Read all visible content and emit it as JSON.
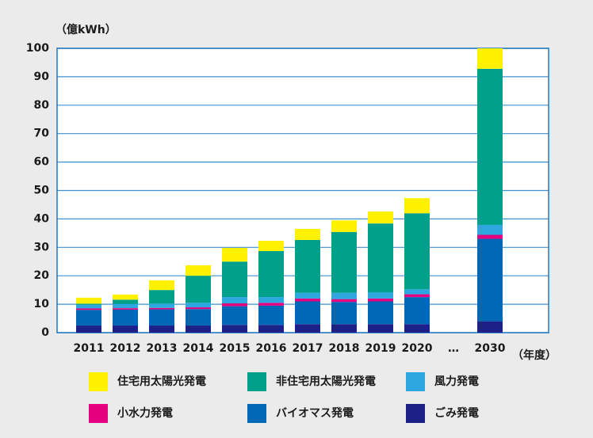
{
  "chart_data": {
    "type": "stacked_bar",
    "y_label": "（億kWh）",
    "x_label": "（年度）",
    "categories": [
      "2011",
      "2012",
      "2013",
      "2014",
      "2015",
      "2016",
      "2017",
      "2018",
      "2019",
      "2020",
      "…",
      "2030"
    ],
    "ylim": [
      0,
      100
    ],
    "yticks": [
      0,
      10,
      20,
      30,
      40,
      50,
      60,
      70,
      80,
      90,
      100
    ],
    "grid": true,
    "series": [
      {
        "name": "ごみ発電",
        "color": "#1d2087",
        "values": [
          2.5,
          2.5,
          2.5,
          2.5,
          2.7,
          2.7,
          3.0,
          3.0,
          3.0,
          3.0,
          null,
          4.0
        ]
      },
      {
        "name": "バイオマス発電",
        "color": "#0068b7",
        "values": [
          5.5,
          5.6,
          5.7,
          5.8,
          6.6,
          6.8,
          8.0,
          7.8,
          8.0,
          9.5,
          null,
          29.0
        ]
      },
      {
        "name": "小水力発電",
        "color": "#e4007f",
        "values": [
          0.5,
          0.5,
          0.5,
          0.6,
          1.0,
          1.0,
          1.0,
          1.0,
          1.0,
          1.0,
          null,
          1.4
        ]
      },
      {
        "name": "風力発電",
        "color": "#2ea7e0",
        "values": [
          1.3,
          1.5,
          1.5,
          1.6,
          2.2,
          2.0,
          2.0,
          2.2,
          2.2,
          1.8,
          null,
          3.5
        ]
      },
      {
        "name": "非住宅用太陽光発電",
        "color": "#00a08a",
        "values": [
          0.4,
          1.5,
          4.8,
          9.5,
          12.5,
          16.2,
          18.6,
          21.4,
          24.2,
          26.7,
          null,
          54.9
        ]
      },
      {
        "name": "住宅用太陽光発電",
        "color": "#fff100",
        "values": [
          2.1,
          1.8,
          3.4,
          3.7,
          4.8,
          3.6,
          3.9,
          4.1,
          4.2,
          5.3,
          null,
          7.2
        ]
      }
    ]
  }
}
